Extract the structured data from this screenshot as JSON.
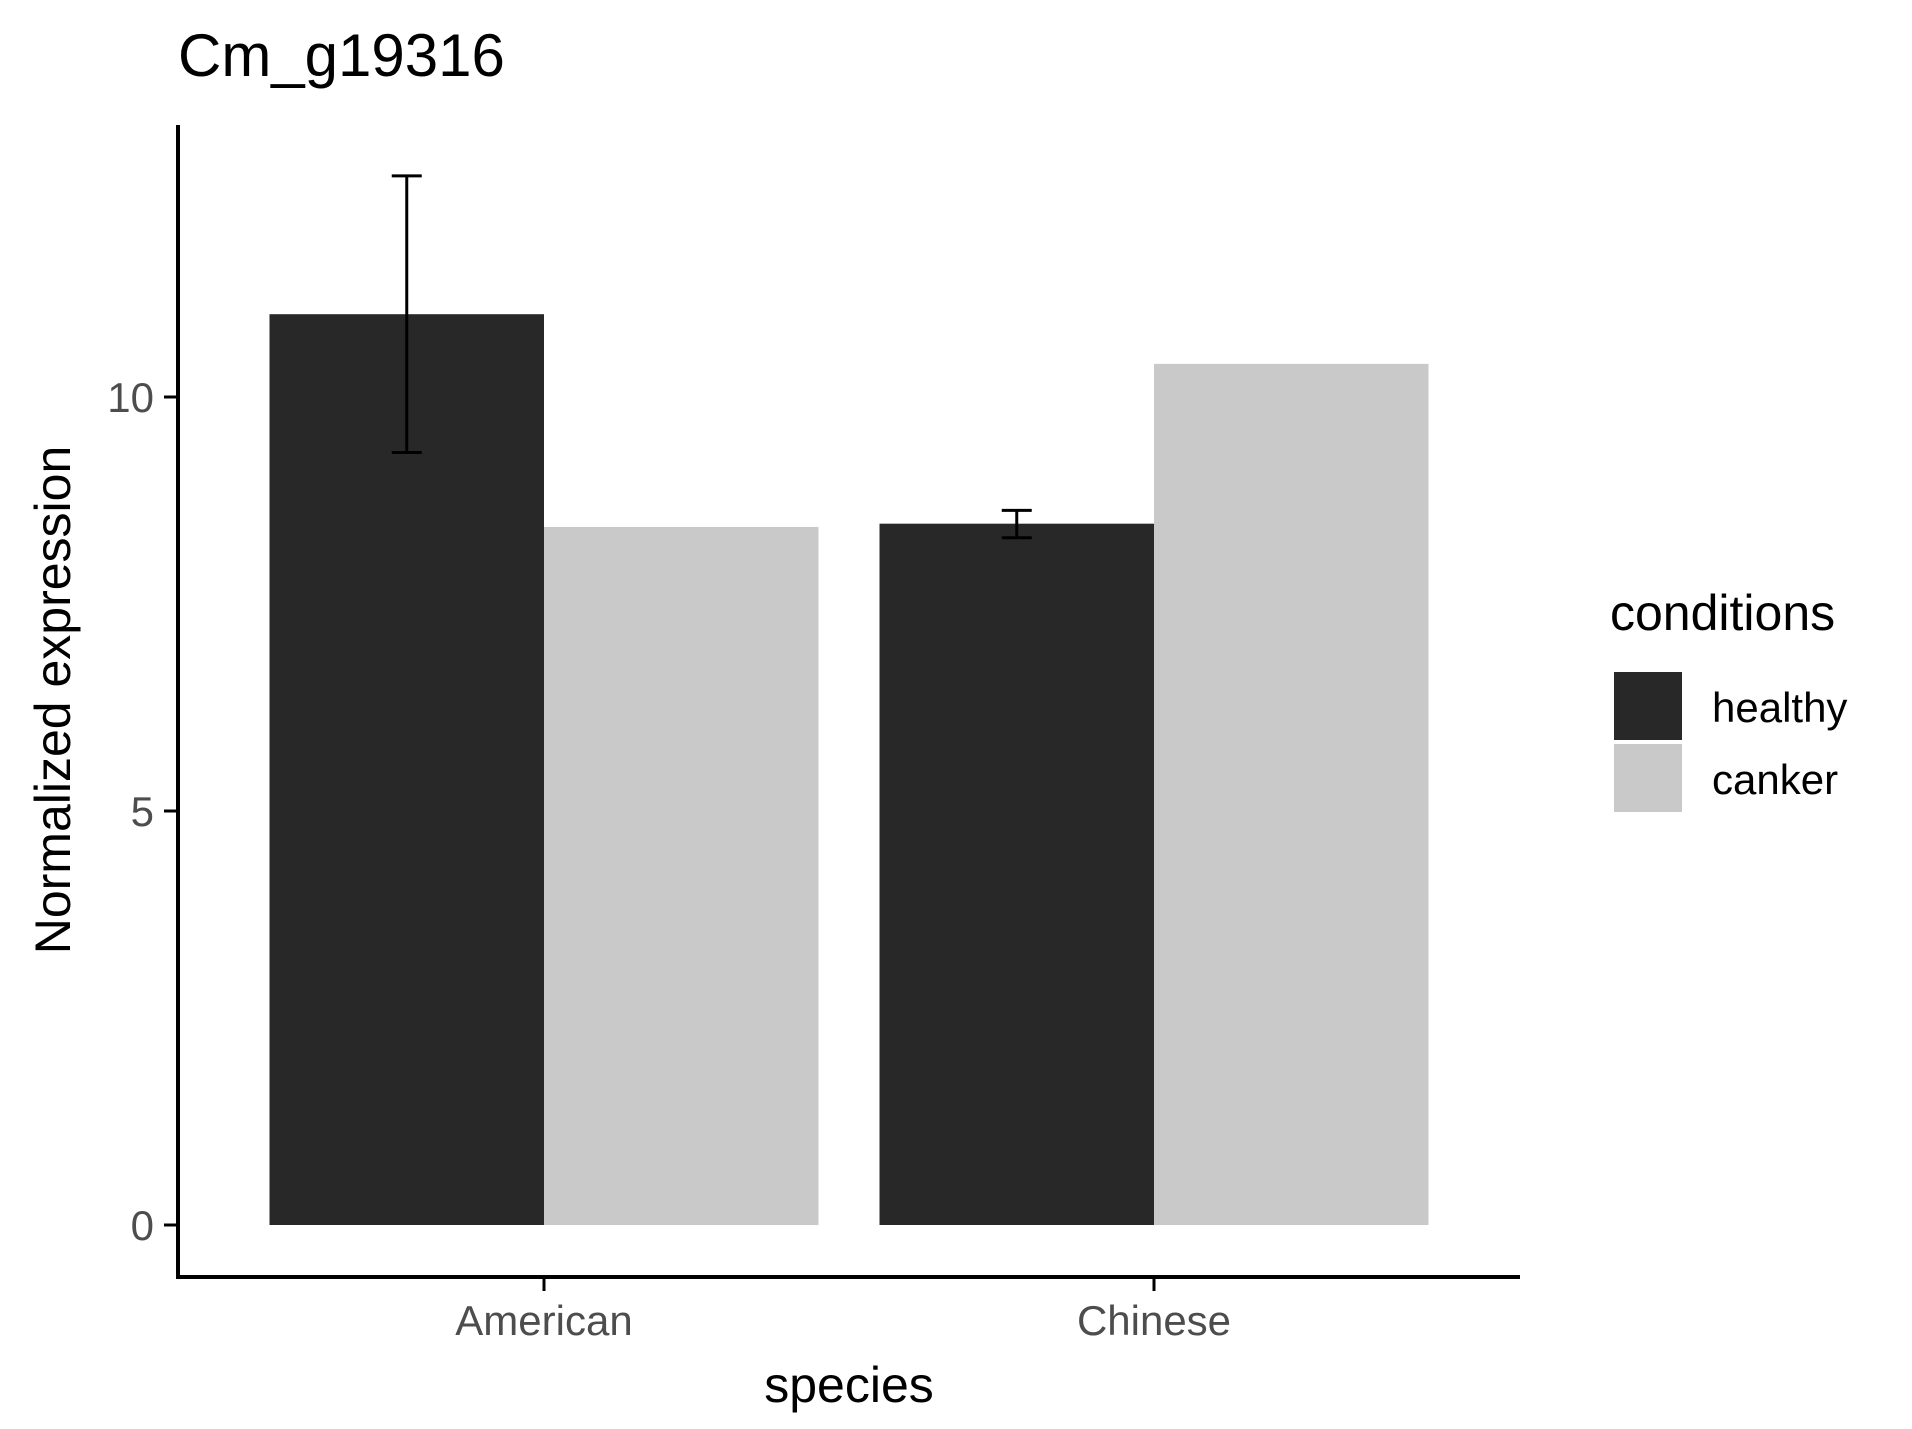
{
  "colors": {
    "healthy": "#282828",
    "canker": "#c9c9c9",
    "axis": "#000000",
    "tick_text": "#4d4d4d",
    "text": "#000000"
  },
  "chart_data": {
    "type": "bar",
    "title": "Cm_g19316",
    "xlabel": "species",
    "ylabel": "Normalized expression",
    "categories": [
      "American",
      "Chinese"
    ],
    "series": [
      {
        "name": "healthy",
        "values": [
          11.0,
          8.47
        ],
        "error_low": [
          9.33,
          8.3
        ],
        "error_high": [
          12.67,
          8.63
        ]
      },
      {
        "name": "canker",
        "values": [
          8.43,
          10.4
        ]
      }
    ],
    "yticks": [
      0,
      5,
      10
    ],
    "ylim": [
      -0.62,
      13.3
    ],
    "grid": false,
    "legend": {
      "title": "conditions",
      "position": "right",
      "entries": [
        "healthy",
        "canker"
      ]
    }
  }
}
